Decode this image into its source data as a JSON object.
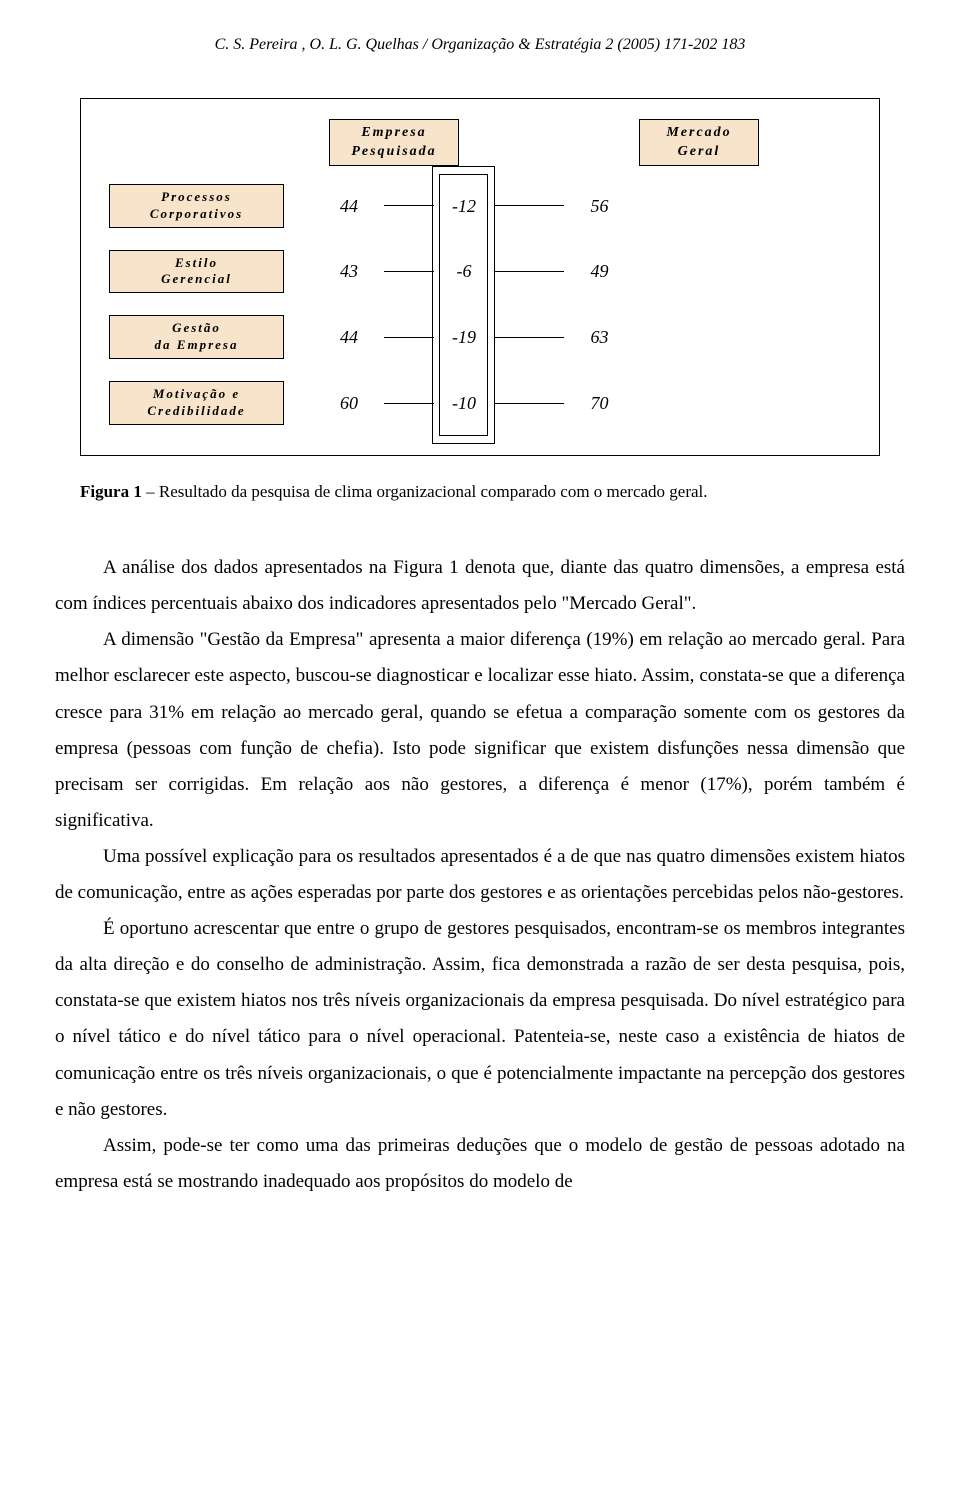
{
  "header": "C. S. Pereira , O. L. G. Quelhas / Organização & Estratégia 2 (2005) 171-202          183",
  "diagram": {
    "top": {
      "left": {
        "l1": "Empresa",
        "l2": "Pesquisada"
      },
      "right": {
        "l1": "Mercado",
        "l2": "Geral"
      }
    },
    "rows": [
      {
        "label1": "Processos",
        "label2": "Corporativos",
        "v1": "44",
        "diff": "-12",
        "v2": "56"
      },
      {
        "label1": "Estilo",
        "label2": "Gerencial",
        "v1": "43",
        "diff": "-6",
        "v2": "49"
      },
      {
        "label1": "Gestão",
        "label2": "da Empresa",
        "v1": "44",
        "diff": "-19",
        "v2": "63"
      },
      {
        "label1": "Motivação e",
        "label2": "Credibilidade",
        "v1": "60",
        "diff": "-10",
        "v2": "70"
      }
    ],
    "colors": {
      "box_fill": "#f7e4ca",
      "box_border": "#000000",
      "line": "#000000",
      "background": "#ffffff"
    }
  },
  "caption": {
    "bold": "Figura 1",
    "rest": " – Resultado da pesquisa de clima organizacional comparado com o mercado geral."
  },
  "paragraphs": [
    "A análise dos dados apresentados na Figura 1 denota que, diante das quatro dimensões, a empresa está com índices percentuais abaixo dos indicadores apresentados pelo \"Mercado Geral\".",
    "A dimensão \"Gestão da Empresa\" apresenta a maior diferença (19%) em relação ao mercado geral. Para melhor esclarecer este aspecto, buscou-se diagnosticar e localizar esse hiato. Assim, constata-se que a diferença cresce para 31% em relação ao mercado geral, quando se efetua a comparação somente com os gestores da empresa (pessoas com função de chefia). Isto pode significar que existem  disfunções nessa dimensão que precisam ser corrigidas. Em relação aos não gestores, a diferença é menor (17%), porém também é significativa.",
    "Uma possível explicação para os resultados apresentados é a de que nas quatro dimensões existem hiatos de comunicação, entre as ações esperadas por parte dos gestores e as orientações percebidas pelos não-gestores.",
    "É oportuno acrescentar que entre o grupo de gestores pesquisados, encontram-se os membros integrantes da alta direção e do conselho de administração. Assim, fica demonstrada a razão de ser desta pesquisa, pois, constata-se que existem hiatos nos três níveis organizacionais da empresa pesquisada. Do nível estratégico para o nível tático e do nível tático para o nível operacional. Patenteia-se, neste caso a existência de hiatos de comunicação entre os três níveis organizacionais, o que é potencialmente impactante na percepção dos gestores e não gestores.",
    "Assim, pode-se ter como uma das primeiras deduções que o modelo de gestão de pessoas adotado na empresa está se mostrando inadequado aos propósitos do modelo de"
  ]
}
